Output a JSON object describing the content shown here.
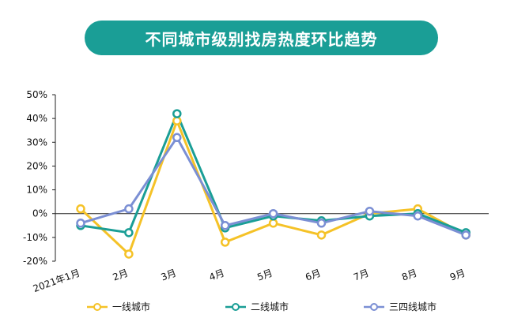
{
  "chart_data": {
    "type": "line",
    "title": "不同城市级别找房热度环比趋势",
    "xlabel": "",
    "ylabel": "",
    "categories": [
      "2021年1月",
      "2月",
      "3月",
      "4月",
      "5月",
      "6月",
      "7月",
      "8月",
      "9月"
    ],
    "y_ticks": [
      "50%",
      "40%",
      "30%",
      "20%",
      "10%",
      "0%",
      "-10%",
      "-20%"
    ],
    "ylim": [
      -20,
      50
    ],
    "grid": false,
    "legend_position": "bottom",
    "series": [
      {
        "name": "一线城市",
        "color": "#f5c227",
        "values": [
          2,
          -17,
          39,
          -12,
          -4,
          -9,
          0,
          2,
          -9
        ]
      },
      {
        "name": "二线城市",
        "color": "#1a9e96",
        "values": [
          -5,
          -8,
          42,
          -6,
          -1,
          -3,
          -1,
          0,
          -8
        ]
      },
      {
        "name": "三四线城市",
        "color": "#7b8fd4",
        "values": [
          -4,
          2,
          32,
          -5,
          0,
          -4,
          1,
          -1,
          -9
        ]
      }
    ]
  }
}
